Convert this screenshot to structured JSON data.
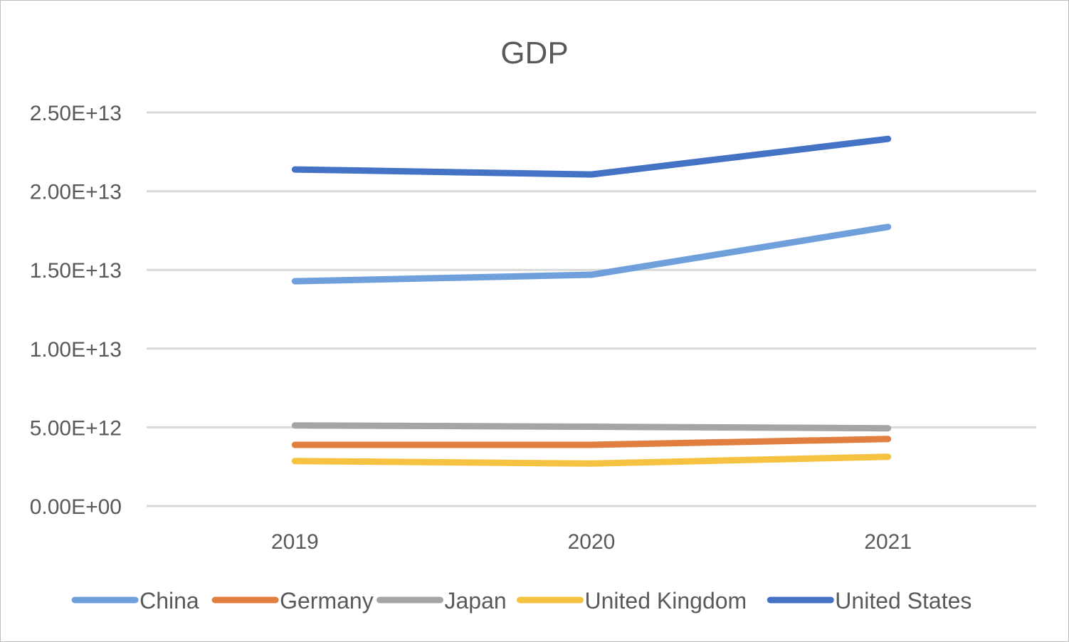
{
  "chart_data": {
    "type": "line",
    "title": "GDP",
    "xlabel": "",
    "ylabel": "",
    "categories": [
      "2019",
      "2020",
      "2021"
    ],
    "ylim": [
      0,
      25000000000000
    ],
    "yticks": [
      {
        "value": 0,
        "label": "0.00E+00"
      },
      {
        "value": 5000000000000,
        "label": "5.00E+12"
      },
      {
        "value": 10000000000000,
        "label": "1.00E+13"
      },
      {
        "value": 15000000000000,
        "label": "1.50E+13"
      },
      {
        "value": 20000000000000,
        "label": "2.00E+13"
      },
      {
        "value": 25000000000000,
        "label": "2.50E+13"
      }
    ],
    "grid": true,
    "legend_position": "bottom",
    "series": [
      {
        "name": "China",
        "color": "#6fa0dc",
        "values": [
          14280000000000,
          14690000000000,
          17730000000000
        ]
      },
      {
        "name": "Germany",
        "color": "#e07f3f",
        "values": [
          3890000000000,
          3890000000000,
          4260000000000
        ]
      },
      {
        "name": "Japan",
        "color": "#a5a5a5",
        "values": [
          5120000000000,
          5040000000000,
          4940000000000
        ]
      },
      {
        "name": "United Kingdom",
        "color": "#f5c242",
        "values": [
          2860000000000,
          2700000000000,
          3130000000000
        ]
      },
      {
        "name": "United States",
        "color": "#4472c4",
        "values": [
          21380000000000,
          21060000000000,
          23320000000000
        ]
      }
    ]
  }
}
